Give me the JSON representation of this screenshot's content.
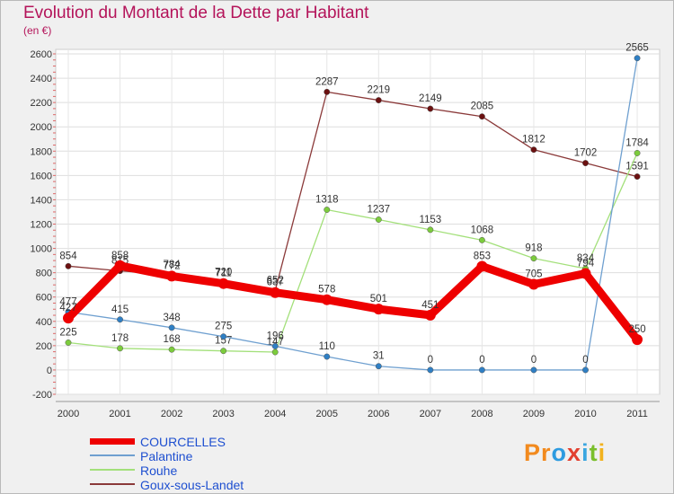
{
  "title": "Evolution du Montant de la Dette par Habitant",
  "subtitle": "(en €)",
  "brand": {
    "text": "Proxiti",
    "letters": [
      {
        "ch": "P",
        "color": "#f28a1e"
      },
      {
        "ch": "r",
        "color": "#f28a1e"
      },
      {
        "ch": "o",
        "color": "#2d9be0"
      },
      {
        "ch": "x",
        "color": "#e23f2f"
      },
      {
        "ch": "i",
        "color": "#3aa6e0"
      },
      {
        "ch": "t",
        "color": "#7abf2c"
      },
      {
        "ch": "i",
        "color": "#f2b21e"
      }
    ]
  },
  "chart_data": {
    "type": "line",
    "title": "Evolution du Montant de la Dette par Habitant",
    "subtitle": "(en €)",
    "x": [
      "2000",
      "2001",
      "2002",
      "2003",
      "2004",
      "2005",
      "2006",
      "2007",
      "2008",
      "2009",
      "2010",
      "2011"
    ],
    "ylim": [
      -200,
      2600
    ],
    "yticks": [
      "-200",
      "0",
      "200",
      "400",
      "600",
      "800",
      "1000",
      "1200",
      "1400",
      "1600",
      "1800",
      "2000",
      "2200",
      "2400",
      "2600"
    ],
    "grid": true,
    "legend_position": "bottom-left",
    "series": [
      {
        "name": "Goux-sous-Landet",
        "color": "#8b3a3a",
        "marker": "#6b1010",
        "values": [
          854,
          815,
          784,
          720,
          652,
          2287,
          2219,
          2149,
          2085,
          1812,
          1702,
          1591
        ],
        "labels": [
          "854",
          "815",
          "784",
          "720",
          "652",
          "2287",
          "2219",
          "2149",
          "2085",
          "1812",
          "1702",
          "1591"
        ]
      },
      {
        "name": "Rouhe",
        "color": "#a3e07a",
        "marker": "#7ccc3c",
        "values": [
          225,
          178,
          168,
          157,
          147,
          1318,
          1237,
          1153,
          1068,
          918,
          834,
          1784
        ],
        "labels": [
          "225",
          "178",
          "168",
          "157",
          "147",
          "1318",
          "1237",
          "1153",
          "1068",
          "918",
          "834",
          "1784"
        ]
      },
      {
        "name": "Palantine",
        "color": "#6fa0d0",
        "marker": "#2f7fc4",
        "values": [
          477,
          415,
          348,
          275,
          196,
          110,
          31,
          0,
          0,
          0,
          0,
          2565
        ],
        "labels": [
          "477",
          "415",
          "348",
          "275",
          "196",
          "110",
          "31",
          "0",
          "0",
          "0",
          "0",
          "2565"
        ]
      },
      {
        "name": "COURCELLES",
        "color": "#ee0000",
        "marker": "#ee0000",
        "values": [
          427,
          858,
          772,
          711,
          637,
          578,
          501,
          451,
          853,
          705,
          794,
          250
        ],
        "labels": [
          "427",
          "858",
          "772",
          "711",
          "637",
          "578",
          "501",
          "451",
          "853",
          "705",
          "794",
          "250"
        ]
      }
    ]
  },
  "legend": [
    {
      "label": "COURCELLES",
      "color": "#ee0000"
    },
    {
      "label": "Palantine",
      "color": "#6fa0d0"
    },
    {
      "label": "Rouhe",
      "color": "#a3e07a"
    },
    {
      "label": "Goux-sous-Landet",
      "color": "#8b3a3a"
    }
  ]
}
